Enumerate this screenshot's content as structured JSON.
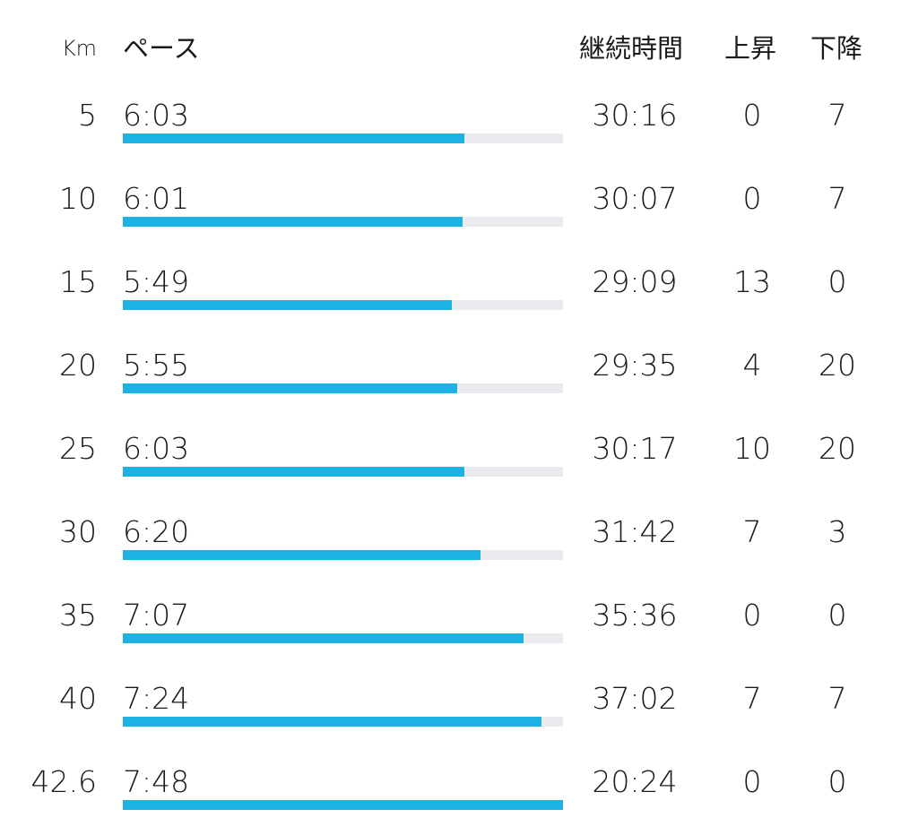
{
  "colors": {
    "bar_fill": "#1eb1e3",
    "bar_track": "#e9ebee",
    "text": "#1a1a1a"
  },
  "header": {
    "km": "Km",
    "pace": "ペース",
    "duration": "継続時間",
    "ascent": "上昇",
    "descent": "下降"
  },
  "splits": [
    {
      "km": "5",
      "pace": "6:03",
      "duration": "30:16",
      "ascent": "0",
      "descent": "7",
      "pace_bar_fraction": 0.776
    },
    {
      "km": "10",
      "pace": "6:01",
      "duration": "30:07",
      "ascent": "0",
      "descent": "7",
      "pace_bar_fraction": 0.772
    },
    {
      "km": "15",
      "pace": "5:49",
      "duration": "29:09",
      "ascent": "13",
      "descent": "0",
      "pace_bar_fraction": 0.747
    },
    {
      "km": "20",
      "pace": "5:55",
      "duration": "29:35",
      "ascent": "4",
      "descent": "20",
      "pace_bar_fraction": 0.76
    },
    {
      "km": "25",
      "pace": "6:03",
      "duration": "30:17",
      "ascent": "10",
      "descent": "20",
      "pace_bar_fraction": 0.776
    },
    {
      "km": "30",
      "pace": "6:20",
      "duration": "31:42",
      "ascent": "7",
      "descent": "3",
      "pace_bar_fraction": 0.812
    },
    {
      "km": "35",
      "pace": "7:07",
      "duration": "35:36",
      "ascent": "0",
      "descent": "0",
      "pace_bar_fraction": 0.911
    },
    {
      "km": "40",
      "pace": "7:24",
      "duration": "37:02",
      "ascent": "7",
      "descent": "7",
      "pace_bar_fraction": 0.951
    },
    {
      "km": "42.6",
      "pace": "7:48",
      "duration": "20:24",
      "ascent": "0",
      "descent": "0",
      "pace_bar_fraction": 1.0
    }
  ]
}
